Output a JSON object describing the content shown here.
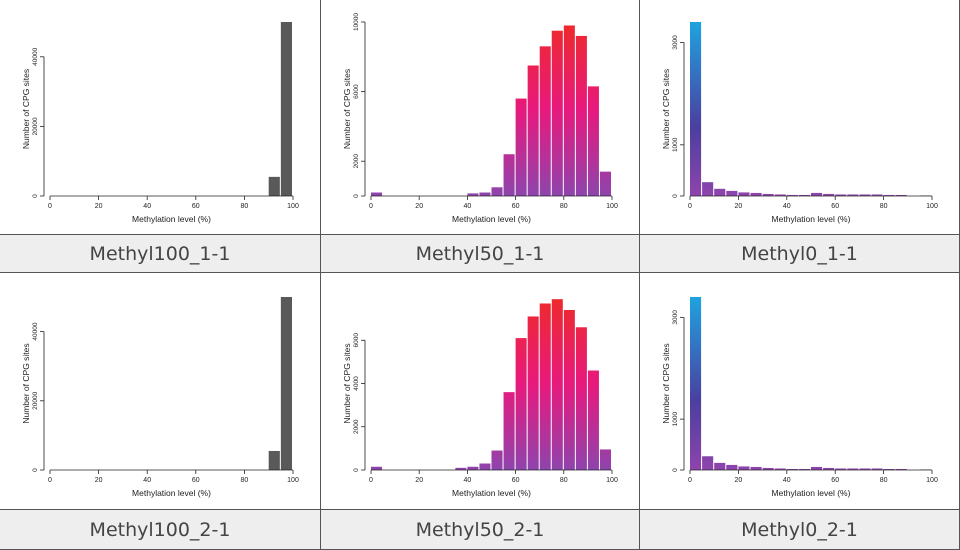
{
  "colors": {
    "border": "#555555",
    "label_bg": "#eeeeee",
    "label_text": "#444444",
    "gray_bar": "#595959",
    "gradient_purple": "#8e44ad",
    "gradient_pink": "#e8197d",
    "gradient_red": "#ee2a2a",
    "gradient_blue": "#1fa3e0"
  },
  "chart_data": [
    {
      "type": "bar",
      "label": "Methyl100_1-1",
      "color_scheme": "gray",
      "xlabel": "Methylation level (%)",
      "ylabel": "Number of CPG sites",
      "xlim": [
        0,
        100
      ],
      "ylim": [
        0,
        50000
      ],
      "xticks": [
        0,
        20,
        40,
        60,
        80,
        100
      ],
      "xtick_labels": [
        "0",
        "20",
        "40",
        "60",
        "80",
        "100"
      ],
      "yticks": [
        0,
        20000,
        40000
      ],
      "ytick_labels": [
        "0",
        "20000",
        "40000"
      ],
      "bin_width": 5,
      "values": [
        0,
        0,
        0,
        0,
        0,
        0,
        0,
        0,
        0,
        0,
        0,
        0,
        0,
        0,
        0,
        0,
        0,
        0,
        5500,
        50000
      ]
    },
    {
      "type": "bar",
      "label": "Methyl50_1-1",
      "color_scheme": "purple-red",
      "xlabel": "Methylation level (%)",
      "ylabel": "Number of CPG sites",
      "xlim": [
        0,
        100
      ],
      "ylim": [
        0,
        10000
      ],
      "xticks": [
        0,
        20,
        40,
        60,
        80,
        100
      ],
      "xtick_labels": [
        "0",
        "20",
        "40",
        "60",
        "80",
        "100"
      ],
      "yticks": [
        0,
        2000,
        6000,
        10000
      ],
      "ytick_labels": [
        "0",
        "2000",
        "6000",
        "10000"
      ],
      "bin_width": 5,
      "values": [
        200,
        0,
        0,
        0,
        0,
        0,
        0,
        0,
        150,
        200,
        500,
        2400,
        5600,
        7500,
        8600,
        9500,
        9800,
        9200,
        6300,
        1400
      ]
    },
    {
      "type": "bar",
      "label": "Methyl0_1-1",
      "color_scheme": "purple-blue",
      "xlabel": "Methylation level (%)",
      "ylabel": "Number of CPG sites",
      "xlim": [
        0,
        100
      ],
      "ylim": [
        0,
        3400
      ],
      "xticks": [
        0,
        20,
        40,
        60,
        80,
        100
      ],
      "xtick_labels": [
        "0",
        "20",
        "40",
        "60",
        "80",
        "100"
      ],
      "yticks": [
        0,
        1000,
        3000
      ],
      "ytick_labels": [
        "0",
        "1000",
        "3000"
      ],
      "bin_width": 5,
      "values": [
        3400,
        270,
        140,
        100,
        70,
        60,
        40,
        30,
        20,
        20,
        60,
        40,
        30,
        30,
        30,
        30,
        20,
        20,
        0,
        10
      ]
    },
    {
      "type": "bar",
      "label": "Methyl100_2-1",
      "color_scheme": "gray",
      "xlabel": "Methylation level (%)",
      "ylabel": "Number of CPG sites",
      "xlim": [
        0,
        100
      ],
      "ylim": [
        0,
        50000
      ],
      "xticks": [
        0,
        20,
        40,
        60,
        80,
        100
      ],
      "xtick_labels": [
        "0",
        "20",
        "40",
        "60",
        "80",
        "100"
      ],
      "yticks": [
        0,
        20000,
        40000
      ],
      "ytick_labels": [
        "0",
        "20000",
        "40000"
      ],
      "bin_width": 5,
      "values": [
        0,
        0,
        0,
        0,
        0,
        0,
        0,
        0,
        0,
        0,
        0,
        0,
        0,
        0,
        0,
        0,
        0,
        0,
        5500,
        50000
      ]
    },
    {
      "type": "bar",
      "label": "Methyl50_2-1",
      "color_scheme": "purple-red",
      "xlabel": "Methylation level (%)",
      "ylabel": "Number of CPG sites",
      "xlim": [
        0,
        100
      ],
      "ylim": [
        0,
        8000
      ],
      "xticks": [
        0,
        20,
        40,
        60,
        80,
        100
      ],
      "xtick_labels": [
        "0",
        "20",
        "40",
        "60",
        "80",
        "100"
      ],
      "yticks": [
        0,
        2000,
        4000,
        6000
      ],
      "ytick_labels": [
        "0",
        "2000",
        "4000",
        "6000"
      ],
      "bin_width": 5,
      "values": [
        150,
        0,
        0,
        0,
        0,
        0,
        0,
        100,
        150,
        300,
        900,
        3600,
        6100,
        7100,
        7700,
        7900,
        7400,
        6600,
        4600,
        950
      ]
    },
    {
      "type": "bar",
      "label": "Methyl0_2-1",
      "color_scheme": "purple-blue",
      "xlabel": "Methylation level (%)",
      "ylabel": "Number of CPG sites",
      "xlim": [
        0,
        100
      ],
      "ylim": [
        0,
        3400
      ],
      "xticks": [
        0,
        20,
        40,
        60,
        80,
        100
      ],
      "xtick_labels": [
        "0",
        "20",
        "40",
        "60",
        "80",
        "100"
      ],
      "yticks": [
        0,
        1000,
        3000
      ],
      "ytick_labels": [
        "0",
        "1000",
        "3000"
      ],
      "bin_width": 5,
      "values": [
        3400,
        270,
        140,
        100,
        70,
        60,
        40,
        30,
        20,
        20,
        60,
        40,
        30,
        30,
        30,
        30,
        20,
        20,
        0,
        10
      ]
    }
  ]
}
